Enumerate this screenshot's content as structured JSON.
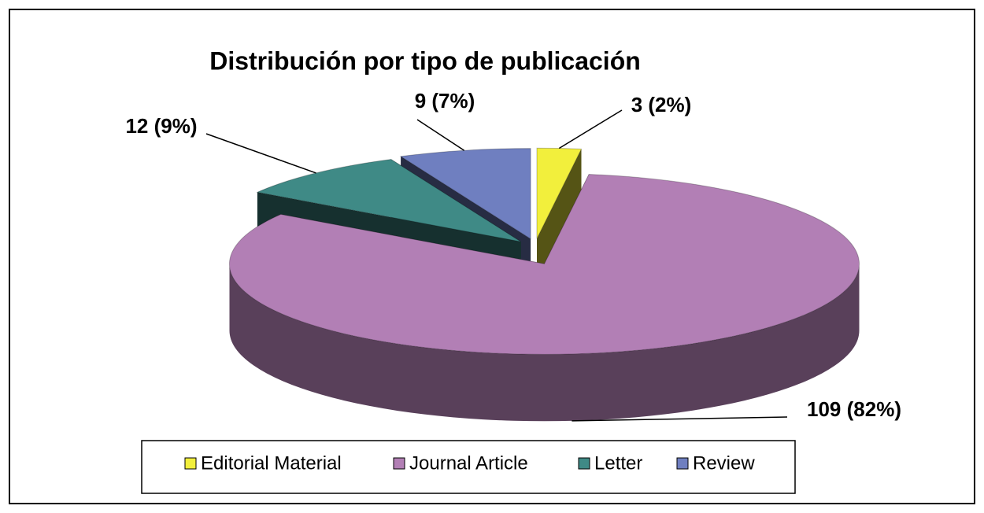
{
  "chart_data": {
    "type": "pie",
    "title": "Distribución por tipo de publicación",
    "categories": [
      "Editorial Material",
      "Journal Article",
      "Letter",
      "Review"
    ],
    "values": [
      3,
      109,
      12,
      9
    ],
    "value_labels": [
      "3 (2%)",
      "109 (82%)",
      "12 (9%)",
      "9 (7%)"
    ],
    "colors": [
      "#f2ef3c",
      "#b27fb5",
      "#3f8a86",
      "#6f7fc0"
    ],
    "legend": "bottom"
  }
}
